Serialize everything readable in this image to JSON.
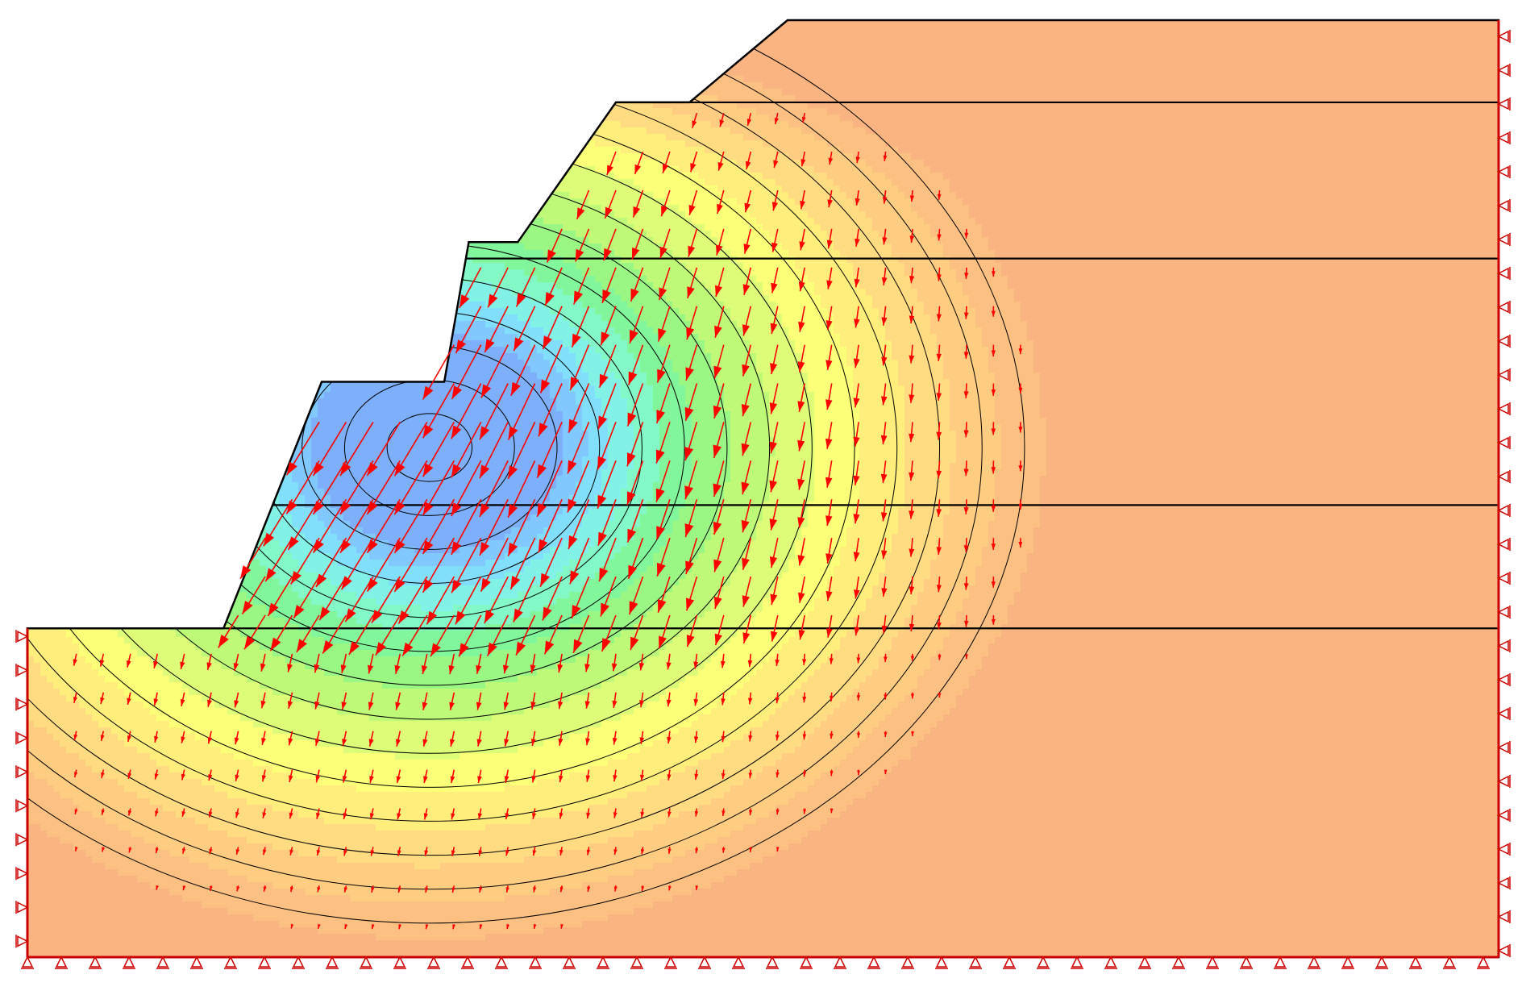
{
  "model": {
    "type": "slope-stability-fem-displacement",
    "units": "none shown",
    "profile": [
      [
        0,
        0
      ],
      [
        0,
        4
      ],
      [
        4,
        4
      ],
      [
        6,
        7
      ],
      [
        8.5,
        7
      ],
      [
        9,
        8.7
      ],
      [
        10,
        8.7
      ],
      [
        12,
        10.4
      ],
      [
        13.5,
        10.4
      ],
      [
        15.5,
        11.4
      ],
      [
        30,
        11.4
      ],
      [
        30,
        0
      ]
    ],
    "benches": [
      [
        4,
        4
      ],
      [
        6,
        7
      ],
      [
        8.5,
        7
      ],
      [
        9,
        8.7
      ],
      [
        10,
        8.7
      ],
      [
        12,
        10.4
      ],
      [
        13.5,
        10.4
      ],
      [
        15.5,
        11.4
      ]
    ],
    "layer_boundaries_y": [
      4,
      5.5,
      8.5,
      10.4
    ]
  },
  "colors": {
    "boundary": "#000000",
    "vectors": "#ff0000",
    "supports": "#cc0000",
    "contour_line": "#000000"
  },
  "legend": {},
  "annotations": []
}
